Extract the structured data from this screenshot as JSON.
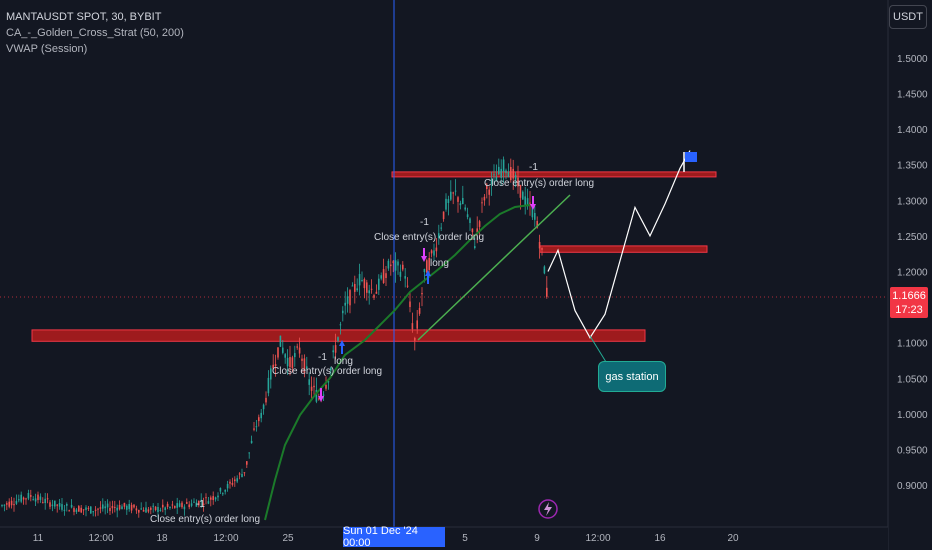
{
  "header": {
    "symbol_line": "MANTAUSDT SPOT, 30, BYBIT",
    "indicator_1": "CA_-_Golden_Cross_Strat (50, 200)",
    "indicator_2": "VWAP (Session)"
  },
  "currency_button": "USDT",
  "price_axis": {
    "ticks": [
      "1.5000",
      "1.4500",
      "1.4000",
      "1.3500",
      "1.3000",
      "1.2500",
      "1.2000",
      "1.1500",
      "1.1000",
      "1.0500",
      "1.0000",
      "0.9500",
      "0.9000"
    ],
    "current_price": "1.1666",
    "countdown": "17:23"
  },
  "time_axis": {
    "ticks": [
      "11",
      "12:00",
      "18",
      "12:00",
      "25",
      "12:00",
      "5",
      "9",
      "12:00",
      "16",
      "20"
    ],
    "crosshair_label": "Sun 01 Dec '24   00:00"
  },
  "annotations": {
    "callout": "gas station",
    "trade_labels": [
      "Close entry(s) order long",
      "Close entry(s) order long",
      "Close entry(s) order long",
      "Close entry(s) order long"
    ],
    "signal_labels": [
      "long",
      "long",
      "-1",
      "-1",
      "-1",
      "-1"
    ]
  },
  "colors": {
    "background": "#131722",
    "bull": "#26a69a",
    "bear": "#ef5350",
    "zone_fill": "#b71c1c",
    "zone_border": "#f23645",
    "trend_line": "#4caf50",
    "ma_line": "#1b7a2a",
    "crosshair": "#2962ff",
    "current_price": "#f23645"
  },
  "icons": {
    "flag": "blue-flag-icon",
    "bolt": "lightning-icon"
  },
  "chart_data": {
    "type": "candlestick",
    "title": "MANTAUSDT SPOT, 30, BYBIT",
    "ylim": [
      0.86,
      1.53
    ],
    "grid": false,
    "close_path": [
      [
        0,
        0.87
      ],
      [
        30,
        0.885
      ],
      [
        60,
        0.87
      ],
      [
        90,
        0.865
      ],
      [
        120,
        0.87
      ],
      [
        150,
        0.865
      ],
      [
        180,
        0.87
      ],
      [
        210,
        0.88
      ],
      [
        230,
        0.9
      ],
      [
        245,
        0.92
      ],
      [
        255,
        0.98
      ],
      [
        262,
        1.0
      ],
      [
        270,
        1.05
      ],
      [
        280,
        1.1
      ],
      [
        290,
        1.07
      ],
      [
        300,
        1.09
      ],
      [
        310,
        1.04
      ],
      [
        320,
        1.02
      ],
      [
        330,
        1.06
      ],
      [
        345,
        1.15
      ],
      [
        360,
        1.19
      ],
      [
        375,
        1.17
      ],
      [
        390,
        1.21
      ],
      [
        405,
        1.2
      ],
      [
        415,
        1.1
      ],
      [
        425,
        1.2
      ],
      [
        435,
        1.23
      ],
      [
        445,
        1.29
      ],
      [
        455,
        1.31
      ],
      [
        465,
        1.29
      ],
      [
        475,
        1.24
      ],
      [
        485,
        1.31
      ],
      [
        495,
        1.33
      ],
      [
        505,
        1.35
      ],
      [
        515,
        1.33
      ],
      [
        525,
        1.3
      ],
      [
        535,
        1.28
      ],
      [
        545,
        1.2
      ],
      [
        548,
        1.15
      ]
    ],
    "zones": [
      {
        "name": "top resistance",
        "y1": 1.335,
        "y2": 1.34
      },
      {
        "name": "mid resistance",
        "y1": 1.227,
        "y2": 1.236
      },
      {
        "name": "support",
        "y1": 1.102,
        "y2": 1.118
      }
    ],
    "projection": [
      [
        548,
        1.2
      ],
      [
        558,
        1.23
      ],
      [
        565,
        1.195
      ],
      [
        575,
        1.145
      ],
      [
        590,
        1.107
      ],
      [
        605,
        1.14
      ],
      [
        620,
        1.215
      ],
      [
        635,
        1.29
      ],
      [
        650,
        1.25
      ],
      [
        665,
        1.295
      ],
      [
        680,
        1.345
      ],
      [
        690,
        1.37
      ]
    ],
    "current_price": 1.1666
  }
}
